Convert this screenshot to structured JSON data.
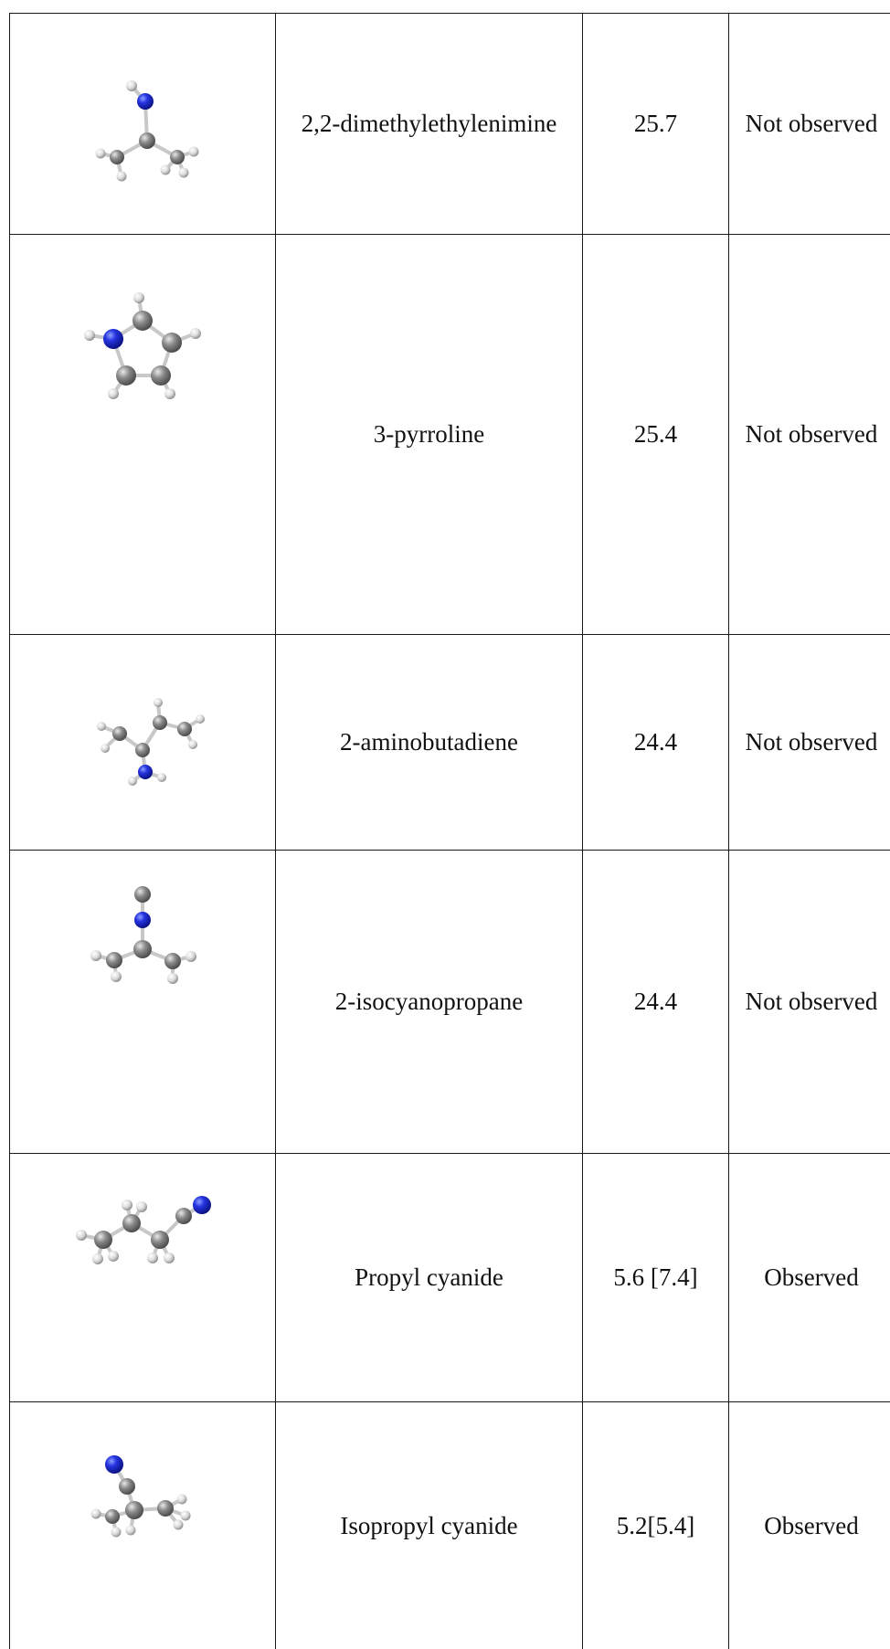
{
  "rows": [
    {
      "molecule_icon": "2,2-dimethylethylenimine-structure-icon",
      "name": "2,2-dimethylethylenimine",
      "value": "25.7",
      "status": "Not observed"
    },
    {
      "molecule_icon": "3-pyrroline-structure-icon",
      "name": "3-pyrroline",
      "value": "25.4",
      "status": "Not observed"
    },
    {
      "molecule_icon": "2-aminobutadiene-structure-icon",
      "name": "2-aminobutadiene",
      "value": "24.4",
      "status": "Not observed"
    },
    {
      "molecule_icon": "2-isocyanopropane-structure-icon",
      "name": "2-isocyanopropane",
      "value": "24.4",
      "status": "Not observed"
    },
    {
      "molecule_icon": "propyl-cyanide-structure-icon",
      "name": "Propyl cyanide",
      "value": "5.6 [7.4]",
      "status": "Observed"
    },
    {
      "molecule_icon": "isopropyl-cyanide-structure-icon",
      "name": "Isopropyl cyanide",
      "value": "5.2[5.4]",
      "status": "Observed"
    }
  ],
  "colors": {
    "nitrogen": "#1f2ad6",
    "carbon": "#8a8a8a",
    "hydrogen": "#e0e0e0",
    "border": "#1a1a1a"
  }
}
